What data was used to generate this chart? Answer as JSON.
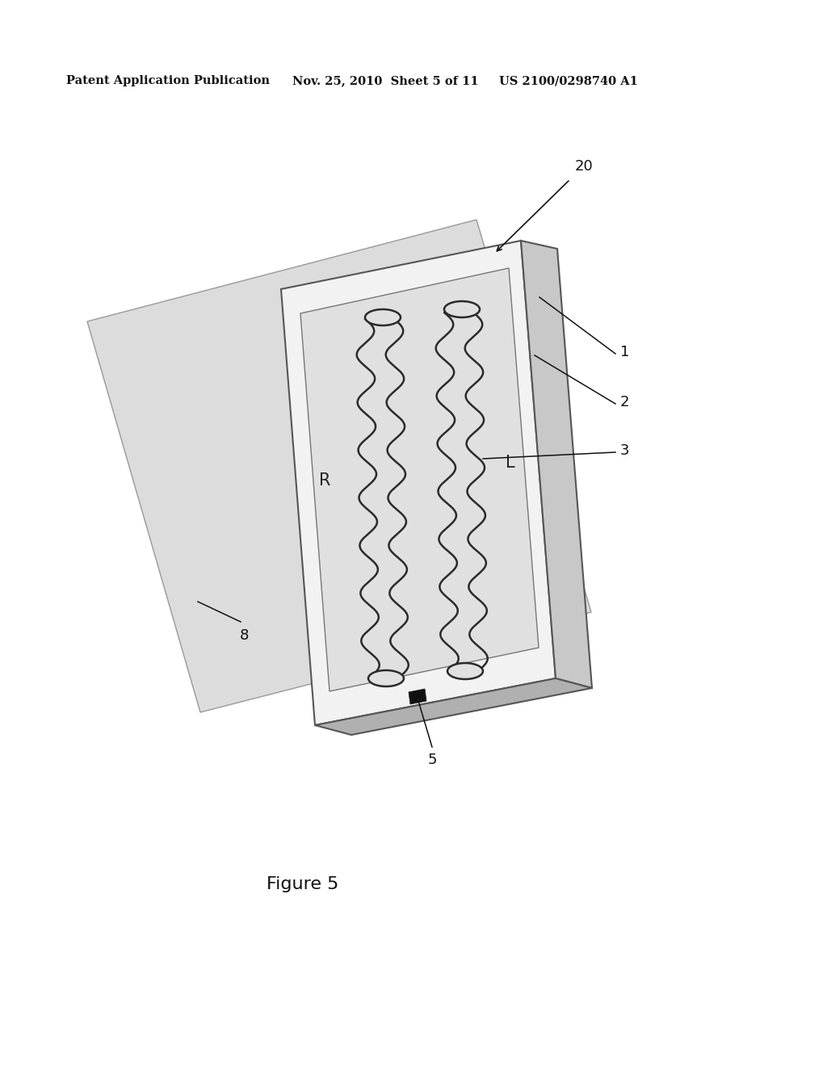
{
  "bg_color": "#ffffff",
  "header_left": "Patent Application Publication",
  "header_mid": "Nov. 25, 2010  Sheet 5 of 11",
  "header_right": "US 2100/0298740 A1",
  "figure_label": "Figure 5",
  "label_20": "20",
  "label_1": "1",
  "label_2": "2",
  "label_3": "3",
  "label_5": "5",
  "label_8": "8",
  "label_R": "R",
  "label_L": "L",
  "line_color": "#555555",
  "dark_color": "#111111",
  "device_face_color": "#f2f2f2",
  "device_side_color": "#c8c8c8",
  "device_bot_color": "#b0b0b0",
  "paper_color": "#dcdcdc",
  "inner_color": "#e0e0e0",
  "channel_wave_color": "#2a2a2a"
}
